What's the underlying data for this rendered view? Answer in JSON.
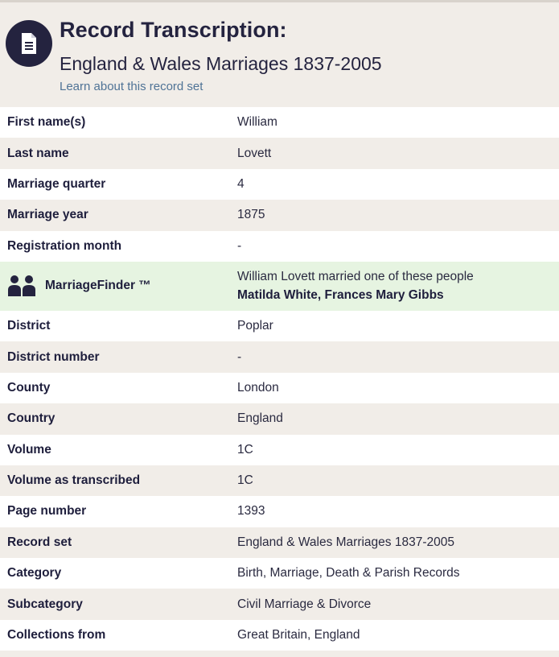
{
  "header": {
    "title": "Record Transcription:",
    "subtitle": "England & Wales Marriages 1837-2005",
    "learn_link": "Learn about this record set",
    "icon": "document-icon"
  },
  "rows_top": [
    {
      "label": "First name(s)",
      "value": "William"
    },
    {
      "label": "Last name",
      "value": "Lovett"
    },
    {
      "label": "Marriage quarter",
      "value": "4"
    },
    {
      "label": "Marriage year",
      "value": "1875"
    },
    {
      "label": "Registration month",
      "value": "-"
    }
  ],
  "marriage_finder": {
    "label": "MarriageFinder ™",
    "text": "William Lovett married one of these people",
    "names": "Matilda White, Frances Mary Gibbs",
    "icon": "people-icon"
  },
  "rows_bottom": [
    {
      "label": "District",
      "value": "Poplar"
    },
    {
      "label": "District number",
      "value": "-"
    },
    {
      "label": "County",
      "value": "London"
    },
    {
      "label": "Country",
      "value": "England"
    },
    {
      "label": "Volume",
      "value": "1C"
    },
    {
      "label": "Volume as transcribed",
      "value": "1C"
    },
    {
      "label": "Page number",
      "value": "1393"
    },
    {
      "label": "Record set",
      "value": "England & Wales Marriages 1837-2005"
    },
    {
      "label": "Category",
      "value": "Birth, Marriage, Death & Parish Records"
    },
    {
      "label": "Subcategory",
      "value": "Civil Marriage & Divorce"
    },
    {
      "label": "Collections from",
      "value": "Great Britain, England"
    }
  ],
  "colors": {
    "navy": "#24233f",
    "link": "#4f7396",
    "finder_bg": "#e6f4e1",
    "stripe": "#f1ede8"
  }
}
